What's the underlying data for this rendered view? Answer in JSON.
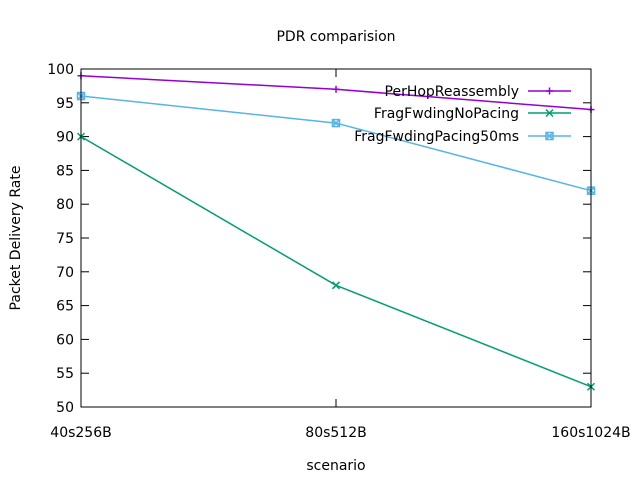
{
  "chart_data": {
    "type": "line",
    "title": "PDR comparision",
    "xlabel": "scenario",
    "ylabel": "Packet Delivery Rate",
    "categories": [
      "40s256B",
      "80s512B",
      "160s1024B"
    ],
    "ylim": [
      50,
      100
    ],
    "yticks": [
      50,
      55,
      60,
      65,
      70,
      75,
      80,
      85,
      90,
      95,
      100
    ],
    "grid": false,
    "legend_position": "top-right",
    "series": [
      {
        "name": "PerHopReassembly",
        "values": [
          99,
          97,
          94
        ],
        "color": "#9400d3",
        "marker": "plus"
      },
      {
        "name": "FragFwdingNoPacing",
        "values": [
          90,
          68,
          53
        ],
        "color": "#009e73",
        "marker": "cross"
      },
      {
        "name": "FragFwdingPacing50ms",
        "values": [
          96,
          92,
          82
        ],
        "color": "#56b4e9",
        "marker": "square-cross"
      }
    ]
  }
}
